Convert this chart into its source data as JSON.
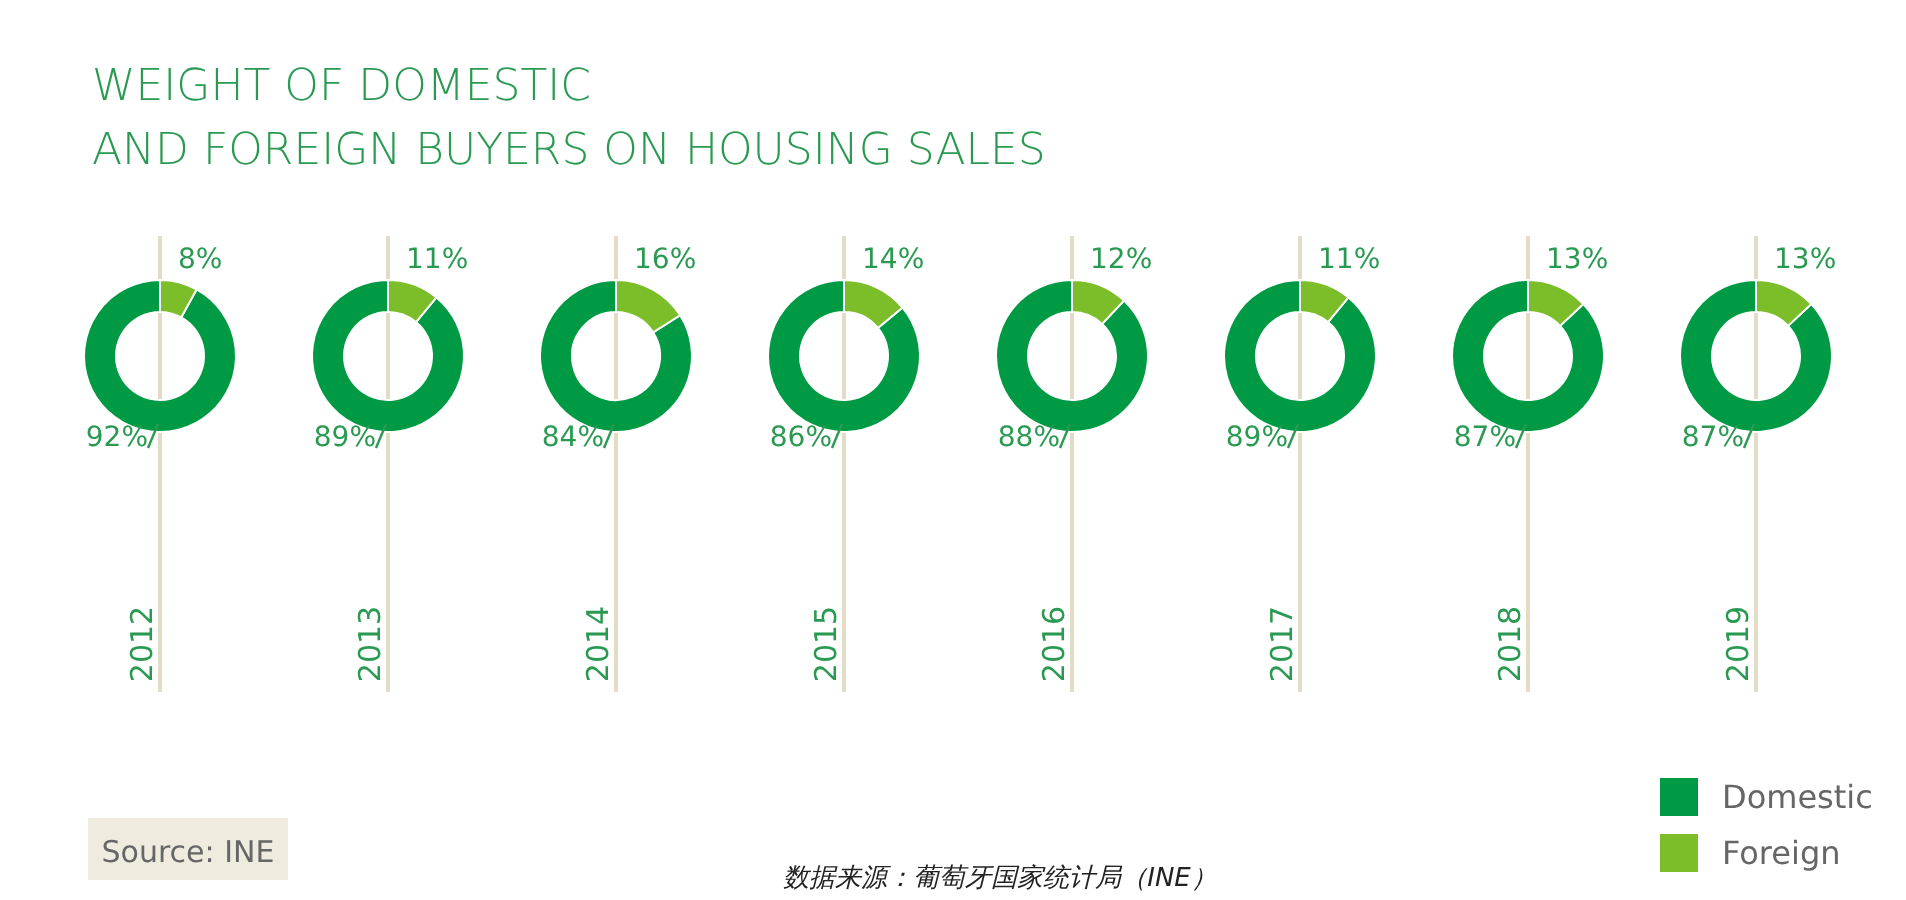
{
  "chart_data": [
    {
      "type": "donut",
      "title": "WEIGHT OF DOMESTIC\nAND FOREIGN BUYERS ON HOUSING SALES",
      "xlabel": "2012",
      "categories": [
        null,
        null
      ],
      "values": [
        92,
        8
      ],
      "colors": [
        "#009a44",
        "#7cbd2a"
      ],
      "value_labels": [
        "92%",
        "8%"
      ],
      "annotations": [
        "Source: INE",
        "数据来源：葡萄牙国家统计局（INE）"
      ]
    },
    {
      "type": "donut",
      "xlabel": "2013",
      "categories": [
        null,
        null
      ],
      "values": [
        89,
        11
      ],
      "colors": [
        "#009a44",
        "#7cbd2a"
      ],
      "value_labels": [
        "89%",
        "11%"
      ]
    },
    {
      "type": "donut",
      "xlabel": "2014",
      "categories": [
        null,
        null
      ],
      "values": [
        84,
        16
      ],
      "colors": [
        "#009a44",
        "#7cbd2a"
      ],
      "value_labels": [
        "84%",
        "16%"
      ]
    },
    {
      "type": "donut",
      "xlabel": "2015",
      "categories": [
        null,
        null
      ],
      "values": [
        86,
        14
      ],
      "colors": [
        "#009a44",
        "#7cbd2a"
      ],
      "value_labels": [
        "86%",
        "14%"
      ]
    },
    {
      "type": "donut",
      "xlabel": "2016",
      "categories": [
        null,
        null
      ],
      "values": [
        88,
        12
      ],
      "colors": [
        "#009a44",
        "#7cbd2a"
      ],
      "value_labels": [
        "88%",
        "12%"
      ]
    },
    {
      "type": "donut",
      "xlabel": "2017",
      "categories": [
        null,
        null
      ],
      "values": [
        89,
        11
      ],
      "colors": [
        "#009a44",
        "#7cbd2a"
      ],
      "value_labels": [
        "89%",
        "11%"
      ]
    },
    {
      "type": "donut",
      "xlabel": "2018",
      "categories": [
        null,
        null
      ],
      "values": [
        87,
        13
      ],
      "colors": [
        "#009a44",
        "#7cbd2a"
      ],
      "value_labels": [
        "87%",
        "13%"
      ]
    },
    {
      "type": "donut",
      "xlabel": "2019",
      "categories": [
        "Domestic",
        "Foreign"
      ],
      "values": [
        87,
        13
      ],
      "colors": [
        "#009a44",
        "#7cbd2a"
      ],
      "value_labels": [
        "87%",
        "13%"
      ],
      "legend": "bottom right"
    }
  ]
}
